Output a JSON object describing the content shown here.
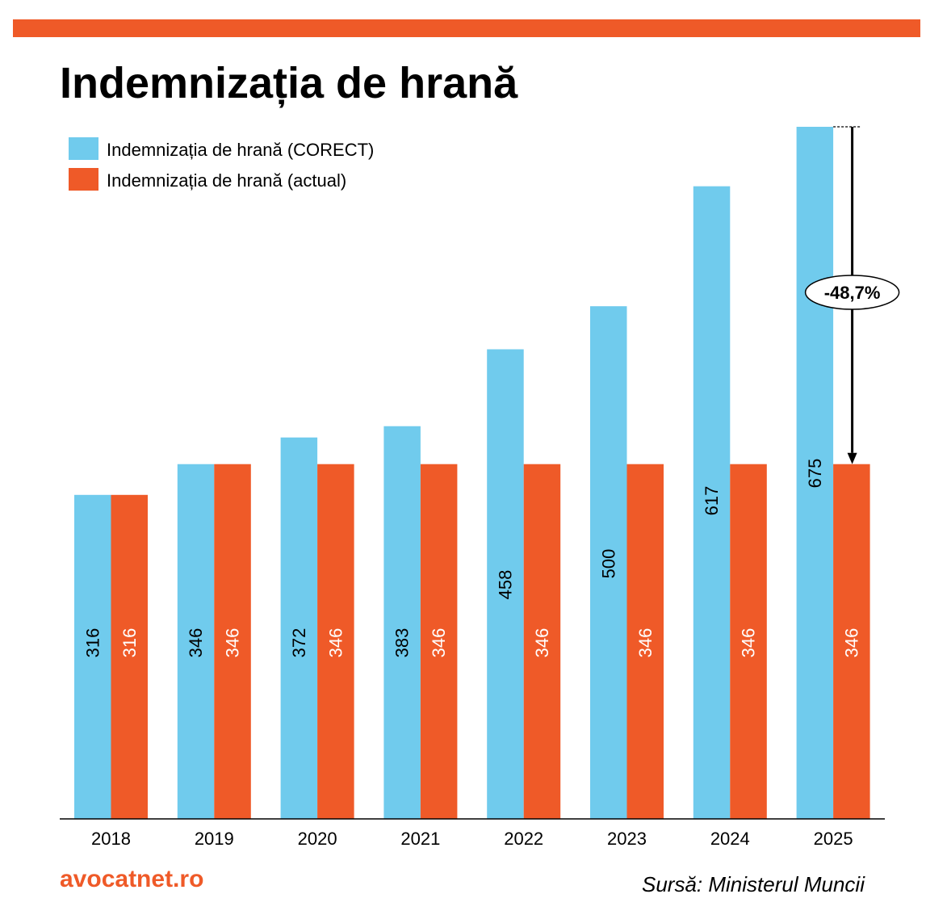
{
  "title": "Indemnizația de hrană",
  "colors": {
    "accent": "#ef5a28",
    "series_correct": "#70cbed",
    "series_actual": "#ef5a28"
  },
  "legend": [
    {
      "label": "Indemnizația de hrană (CORECT)",
      "color": "#70cbed"
    },
    {
      "label": "Indemnizația de hrană (actual)",
      "color": "#ef5a28"
    }
  ],
  "chart_data": {
    "type": "bar",
    "categories": [
      "2018",
      "2019",
      "2020",
      "2021",
      "2022",
      "2023",
      "2024",
      "2025"
    ],
    "series": [
      {
        "name": "Indemnizația de hrană (CORECT)",
        "values": [
          316,
          346,
          372,
          383,
          458,
          500,
          617,
          675
        ]
      },
      {
        "name": "Indemnizația de hrană (actual)",
        "values": [
          316,
          346,
          346,
          346,
          346,
          346,
          346,
          346
        ]
      }
    ],
    "ylim": [
      0,
      675
    ],
    "grid": false,
    "legend_position": "top-left",
    "annotation": {
      "text": "-48,7%",
      "category": "2025"
    }
  },
  "footer": {
    "site": "avocatnet.ro",
    "source": "Sursă: Ministerul Muncii"
  }
}
